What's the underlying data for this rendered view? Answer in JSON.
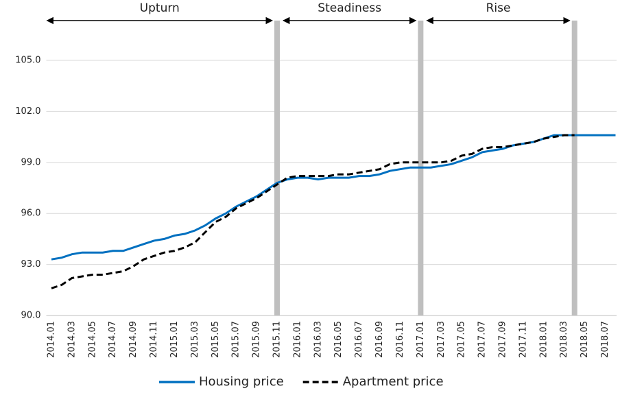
{
  "chart_data": {
    "type": "line",
    "categories": [
      "2014.01",
      null,
      "2014.03",
      null,
      "2014.05",
      null,
      "2014.07",
      null,
      "2014.09",
      null,
      "2014.11",
      null,
      "2015.01",
      null,
      "2015.03",
      null,
      "2015.05",
      null,
      "2015.07",
      null,
      "2015.09",
      null,
      "2015.11",
      null,
      "2016.01",
      null,
      "2016.03",
      null,
      "2016.05",
      null,
      "2016.07",
      null,
      "2016.09",
      null,
      "2016.11",
      null,
      "2017.01",
      null,
      "2017.03",
      null,
      "2017.05",
      null,
      "2017.07",
      null,
      "2017.09",
      null,
      "2017.11",
      null,
      "2018.01",
      null,
      "2018.03",
      null,
      "2018.05",
      null,
      "2018.07",
      null
    ],
    "series": [
      {
        "name": "Housing price",
        "color": "#0070c0",
        "dash": false,
        "values": [
          93.3,
          93.4,
          93.6,
          93.7,
          93.7,
          93.7,
          93.8,
          93.8,
          94.0,
          94.2,
          94.4,
          94.5,
          94.7,
          94.8,
          95.0,
          95.3,
          95.7,
          96.0,
          96.4,
          96.7,
          97.0,
          97.4,
          97.8,
          98.0,
          98.1,
          98.1,
          98.0,
          98.1,
          98.1,
          98.1,
          98.2,
          98.2,
          98.3,
          98.5,
          98.6,
          98.7,
          98.7,
          98.7,
          98.8,
          98.9,
          99.1,
          99.3,
          99.6,
          99.7,
          99.8,
          100.0,
          100.1,
          100.2,
          100.4,
          100.6,
          100.6,
          100.6,
          100.6,
          100.6,
          100.6,
          100.6
        ]
      },
      {
        "name": "Apartment price",
        "color": "#000000",
        "dash": true,
        "values": [
          91.6,
          91.8,
          92.2,
          92.3,
          92.4,
          92.4,
          92.5,
          92.6,
          92.9,
          93.3,
          93.5,
          93.7,
          93.8,
          94.0,
          94.3,
          94.9,
          95.5,
          95.8,
          96.3,
          96.6,
          96.9,
          97.3,
          97.7,
          98.1,
          98.2,
          98.2,
          98.2,
          98.2,
          98.3,
          98.3,
          98.4,
          98.5,
          98.6,
          98.9,
          99.0,
          99.0,
          99.0,
          99.0,
          99.0,
          99.1,
          99.4,
          99.5,
          99.8,
          99.9,
          99.9,
          100.0,
          100.1,
          100.2,
          100.4,
          100.5,
          100.6,
          100.6,
          null,
          null,
          null,
          null
        ]
      }
    ],
    "ylim": [
      90,
      108
    ],
    "yticks": [
      {
        "value": 90,
        "label": "90.0"
      },
      {
        "value": 93,
        "label": "93.0"
      },
      {
        "value": 96,
        "label": "96.0"
      },
      {
        "value": 99,
        "label": "99.0"
      },
      {
        "value": 102,
        "label": "102.0"
      },
      {
        "value": 105,
        "label": "105.0"
      }
    ],
    "grid": true,
    "periods": [
      "Upturn",
      "Steadiness",
      "Rise"
    ]
  }
}
